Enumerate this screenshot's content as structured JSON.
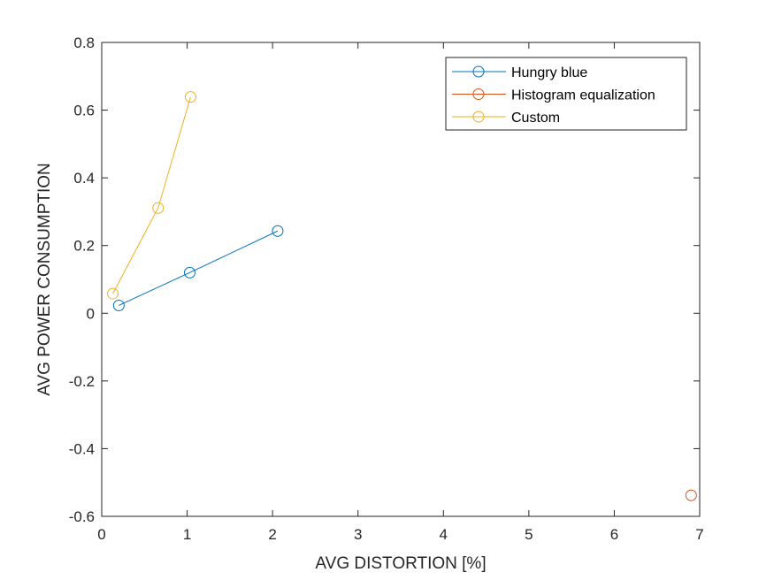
{
  "chart_data": {
    "type": "line",
    "xlabel": "AVG DISTORTION [%]",
    "ylabel": "AVG POWER CONSUMPTION",
    "xlim": [
      0,
      7
    ],
    "ylim": [
      -0.6,
      0.8
    ],
    "xticks": [
      0,
      1,
      2,
      3,
      4,
      5,
      6,
      7
    ],
    "yticks": [
      -0.6,
      -0.4,
      -0.2,
      0,
      0.2,
      0.4,
      0.6,
      0.8
    ],
    "xtick_labels": [
      "0",
      "1",
      "2",
      "3",
      "4",
      "5",
      "6",
      "7"
    ],
    "ytick_labels": [
      "-0.6",
      "-0.4",
      "-0.2",
      "0",
      "0.2",
      "0.4",
      "0.6",
      "0.8"
    ],
    "grid": false,
    "legend_position": "top-right",
    "series": [
      {
        "name": "Hungry blue",
        "color": "#0072BD",
        "marker": "circle",
        "x": [
          0.2,
          1.03,
          2.06
        ],
        "y": [
          0.023,
          0.12,
          0.243
        ]
      },
      {
        "name": "Histogram equalization",
        "color": "#D95319",
        "marker": "circle",
        "x": [
          6.9
        ],
        "y": [
          -0.538
        ]
      },
      {
        "name": "Custom",
        "color": "#EDB120",
        "marker": "circle",
        "x": [
          0.13,
          0.66,
          1.04
        ],
        "y": [
          0.058,
          0.311,
          0.639
        ]
      }
    ]
  }
}
